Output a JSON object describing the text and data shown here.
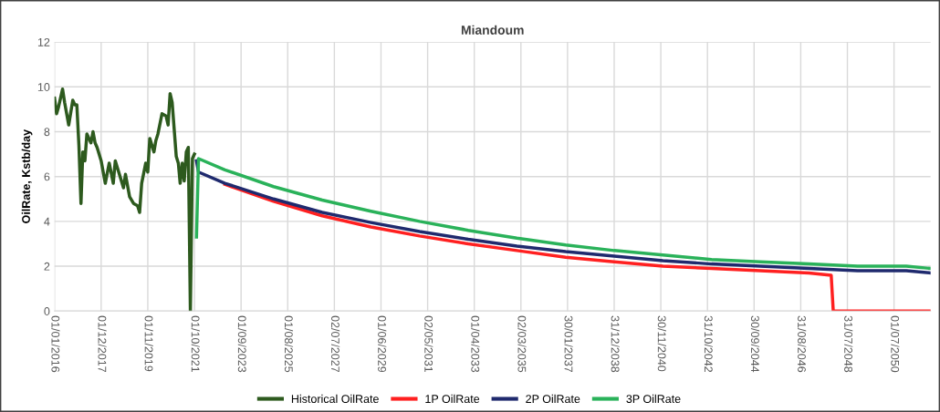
{
  "chart_data": {
    "type": "line",
    "title": "Miandoum",
    "ylabel": "OilRate, Kstb/day",
    "xlim": [
      "2016-01-01",
      "2052-01-01"
    ],
    "xticks": [
      {
        "value": "2016-01-01",
        "label": "01/01/2016"
      },
      {
        "value": "2017-12-01",
        "label": "01/12/2017"
      },
      {
        "value": "2019-11-01",
        "label": "01/11/2019"
      },
      {
        "value": "2021-10-01",
        "label": "01/10/2021"
      },
      {
        "value": "2023-09-01",
        "label": "01/09/2023"
      },
      {
        "value": "2025-08-01",
        "label": "01/08/2025"
      },
      {
        "value": "2027-07-02",
        "label": "02/07/2027"
      },
      {
        "value": "2029-06-01",
        "label": "01/06/2029"
      },
      {
        "value": "2031-05-02",
        "label": "02/05/2031"
      },
      {
        "value": "2033-04-01",
        "label": "01/04/2033"
      },
      {
        "value": "2035-03-02",
        "label": "02/03/2035"
      },
      {
        "value": "2037-01-30",
        "label": "30/01/2037"
      },
      {
        "value": "2038-12-31",
        "label": "31/12/2038"
      },
      {
        "value": "2040-11-30",
        "label": "30/11/2040"
      },
      {
        "value": "2042-10-31",
        "label": "31/10/2042"
      },
      {
        "value": "2044-09-30",
        "label": "30/09/2044"
      },
      {
        "value": "2046-08-31",
        "label": "31/08/2046"
      },
      {
        "value": "2048-07-31",
        "label": "31/07/2048"
      },
      {
        "value": "2050-07-01",
        "label": "01/07/2050"
      }
    ],
    "ylim": [
      0,
      12
    ],
    "yticks": [
      0,
      2,
      4,
      6,
      8,
      10,
      12
    ],
    "grid": true,
    "legend": "bottom",
    "marker": "none",
    "line_style": "solid",
    "series": [
      {
        "name": "Historical OilRate",
        "color": "#2d5a1e",
        "x": [
          "2016-01",
          "2016-02",
          "2016-03",
          "2016-05",
          "2016-06",
          "2016-08",
          "2016-10",
          "2016-11",
          "2016-12",
          "2017-01",
          "2017-02",
          "2017-03",
          "2017-04",
          "2017-05",
          "2017-07",
          "2017-08",
          "2017-09",
          "2017-10",
          "2017-12",
          "2018-02",
          "2018-04",
          "2018-06",
          "2018-07",
          "2018-09",
          "2018-11",
          "2018-12",
          "2019-02",
          "2019-04",
          "2019-06",
          "2019-07",
          "2019-08",
          "2019-10",
          "2019-11",
          "2019-12",
          "2020-02",
          "2020-03",
          "2020-04",
          "2020-06",
          "2020-08",
          "2020-09",
          "2020-10",
          "2020-11",
          "2021-01",
          "2021-02",
          "2021-03",
          "2021-04",
          "2021-05",
          "2021-06",
          "2021-07",
          "2021-08",
          "2021-09",
          "2021-10"
        ],
        "values": [
          9.5,
          8.8,
          9.1,
          9.9,
          9.3,
          8.3,
          9.4,
          9.2,
          9.2,
          7.4,
          4.8,
          7.1,
          6.7,
          7.9,
          7.5,
          8.0,
          7.5,
          7.3,
          6.7,
          5.7,
          6.6,
          5.7,
          6.7,
          6.1,
          5.5,
          6.1,
          5.1,
          4.8,
          4.7,
          4.4,
          5.7,
          6.6,
          6.2,
          7.7,
          7.1,
          7.6,
          7.9,
          8.8,
          8.7,
          8.3,
          9.7,
          9.3,
          6.9,
          6.6,
          5.7,
          6.6,
          5.8,
          7.1,
          7.3,
          0,
          6.8,
          7.0
        ]
      },
      {
        "name": "1P OilRate",
        "color": "#ff2020",
        "x": [
          "2023-01",
          "2025-01",
          "2027-01",
          "2029-01",
          "2031-01",
          "2033-01",
          "2035-01",
          "2037-01",
          "2039-01",
          "2041-01",
          "2043-01",
          "2045-01",
          "2047-01",
          "2047-12",
          "2048-01",
          "2052-01"
        ],
        "values": [
          5.65,
          4.9,
          4.25,
          3.75,
          3.35,
          3.0,
          2.7,
          2.4,
          2.2,
          2.0,
          1.9,
          1.8,
          1.7,
          1.6,
          0,
          0
        ]
      },
      {
        "name": "2P OilRate",
        "color": "#1f2a6e",
        "x": [
          "2021-11",
          "2021-12",
          "2023-01",
          "2025-01",
          "2027-01",
          "2029-01",
          "2031-01",
          "2033-01",
          "2035-01",
          "2037-01",
          "2039-01",
          "2041-01",
          "2043-01",
          "2045-01",
          "2047-01",
          "2049-01",
          "2051-01",
          "2052-01"
        ],
        "values": [
          6.7,
          6.2,
          5.7,
          5.0,
          4.4,
          3.95,
          3.55,
          3.2,
          2.9,
          2.65,
          2.45,
          2.25,
          2.1,
          2.0,
          1.9,
          1.8,
          1.8,
          1.7
        ]
      },
      {
        "name": "3P OilRate",
        "color": "#2ab25a",
        "x": [
          "2021-11",
          "2021-12",
          "2023-01",
          "2025-01",
          "2027-01",
          "2029-01",
          "2031-01",
          "2033-01",
          "2035-01",
          "2037-01",
          "2039-01",
          "2041-01",
          "2043-01",
          "2045-01",
          "2047-01",
          "2049-01",
          "2051-01",
          "2052-01"
        ],
        "values": [
          3.3,
          6.8,
          6.3,
          5.55,
          4.95,
          4.45,
          4.0,
          3.6,
          3.25,
          2.95,
          2.7,
          2.5,
          2.3,
          2.2,
          2.1,
          2.0,
          2.0,
          1.9
        ]
      }
    ]
  }
}
